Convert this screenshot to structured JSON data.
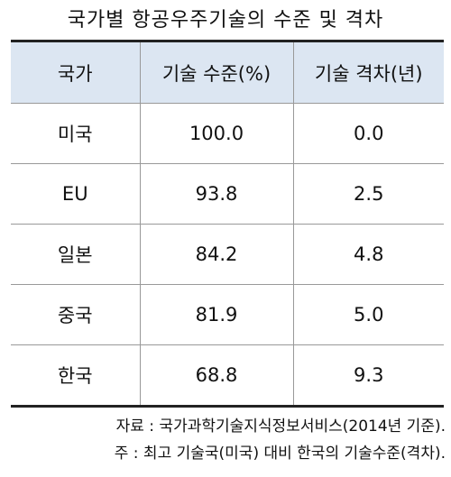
{
  "title": "국가별 항공우주기술의 수준 및 격차",
  "table": {
    "header": [
      "국가",
      "기술 수준(%)",
      "기술 격차(년)"
    ],
    "rows": [
      [
        "미국",
        "100.0",
        "0.0"
      ],
      [
        "EU",
        "93.8",
        "2.5"
      ],
      [
        "일본",
        "84.2",
        "4.8"
      ],
      [
        "중국",
        "81.9",
        "5.0"
      ],
      [
        "한국",
        "68.8",
        "9.3"
      ]
    ]
  },
  "notes": [
    "자료 : 국가과학기술지식정보서비스(2014년 기준).",
    "주 : 최고 기술국(미국) 대비 한국의 기술수준(격차)."
  ]
}
